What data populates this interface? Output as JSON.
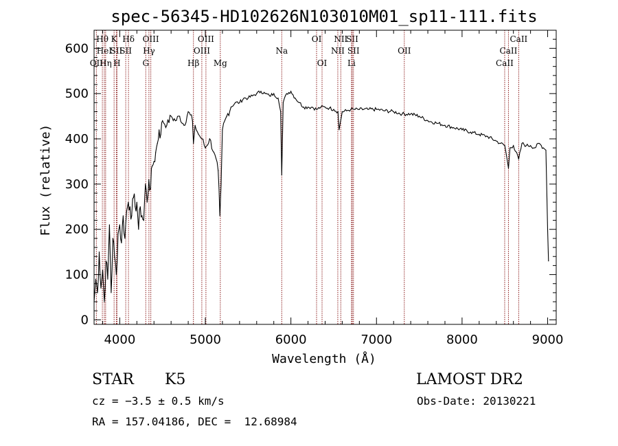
{
  "chart_data": {
    "type": "line",
    "title": "spec-56345-HD102626N103010M01_sp11-111.fits",
    "xlabel": "Wavelength (Å)",
    "ylabel": "Flux (relative)",
    "xlim": [
      3700,
      9100
    ],
    "ylim": [
      -10,
      640
    ],
    "xticks": [
      4000,
      5000,
      6000,
      7000,
      8000,
      9000
    ],
    "yticks": [
      0,
      100,
      200,
      300,
      400,
      500,
      600
    ],
    "grid": false,
    "series": [
      {
        "x": [
          3700,
          3720,
          3740,
          3760,
          3780,
          3800,
          3820,
          3840,
          3860,
          3880,
          3900,
          3920,
          3940,
          3960,
          3980,
          4000,
          4020,
          4040,
          4060,
          4080,
          4100,
          4120,
          4140,
          4160,
          4180,
          4200,
          4220,
          4240,
          4260,
          4280,
          4300,
          4320,
          4340,
          4360,
          4380,
          4400,
          4420,
          4440,
          4460,
          4480,
          4500,
          4550,
          4600,
          4650,
          4700,
          4750,
          4800,
          4850,
          4861,
          4880,
          4920,
          4960,
          5000,
          5050,
          5100,
          5150,
          5170,
          5184,
          5200,
          5250,
          5300,
          5350,
          5400,
          5450,
          5500,
          5550,
          5600,
          5650,
          5700,
          5750,
          5800,
          5850,
          5880,
          5893,
          5910,
          5950,
          6000,
          6050,
          6100,
          6150,
          6200,
          6250,
          6300,
          6350,
          6400,
          6450,
          6500,
          6550,
          6563,
          6600,
          6650,
          6700,
          6750,
          6800,
          6900,
          7000,
          7100,
          7200,
          7300,
          7400,
          7500,
          7600,
          7700,
          7800,
          7900,
          8000,
          8100,
          8200,
          8300,
          8400,
          8450,
          8500,
          8542,
          8560,
          8600,
          8662,
          8700,
          8750,
          8800,
          8850,
          8900,
          8950,
          8980,
          9000,
          9010
        ],
        "values": [
          40,
          90,
          60,
          150,
          70,
          110,
          40,
          130,
          90,
          210,
          60,
          180,
          140,
          100,
          190,
          210,
          170,
          230,
          180,
          240,
          260,
          250,
          230,
          270,
          250,
          260,
          200,
          250,
          230,
          220,
          300,
          260,
          310,
          290,
          340,
          350,
          370,
          390,
          420,
          410,
          440,
          430,
          450,
          440,
          450,
          430,
          460,
          440,
          390,
          430,
          410,
          400,
          380,
          400,
          370,
          330,
          230,
          300,
          420,
          450,
          470,
          480,
          480,
          490,
          490,
          495,
          500,
          505,
          500,
          495,
          500,
          490,
          460,
          320,
          480,
          500,
          505,
          490,
          480,
          470,
          470,
          470,
          465,
          470,
          470,
          468,
          465,
          460,
          420,
          460,
          462,
          465,
          465,
          465,
          465,
          465,
          462,
          460,
          455,
          455,
          450,
          440,
          435,
          430,
          425,
          420,
          415,
          410,
          405,
          395,
          390,
          385,
          335,
          380,
          385,
          355,
          390,
          385,
          385,
          380,
          390,
          380,
          375,
          200,
          130
        ]
      }
    ],
    "spectral_lines": [
      {
        "label": "Hθ",
        "x": 3797,
        "row": 1
      },
      {
        "label": "HeI",
        "x": 3820,
        "row": 2
      },
      {
        "label": "OII",
        "x": 3727,
        "row": 3
      },
      {
        "label": "Hη",
        "x": 3835,
        "row": 3
      },
      {
        "label": "K",
        "x": 3934,
        "row": 1
      },
      {
        "label": "SII",
        "x": 3960,
        "row": 2
      },
      {
        "label": "H",
        "x": 3968,
        "row": 3
      },
      {
        "label": "Hδ",
        "x": 4102,
        "row": 1
      },
      {
        "label": "SII",
        "x": 4070,
        "row": 2
      },
      {
        "label": "OIII",
        "x": 4363,
        "row": 1
      },
      {
        "label": "Hγ",
        "x": 4341,
        "row": 2
      },
      {
        "label": "G",
        "x": 4304,
        "row": 3
      },
      {
        "label": "OIII",
        "x": 5007,
        "row": 1
      },
      {
        "label": "OIII",
        "x": 4959,
        "row": 2
      },
      {
        "label": "Hβ",
        "x": 4861,
        "row": 3
      },
      {
        "label": "Mg",
        "x": 5175,
        "row": 3
      },
      {
        "label": "Na",
        "x": 5893,
        "row": 2
      },
      {
        "label": "OI",
        "x": 6300,
        "row": 1
      },
      {
        "label": "OI",
        "x": 6364,
        "row": 3
      },
      {
        "label": "NII",
        "x": 6583,
        "row": 1
      },
      {
        "label": "SII",
        "x": 6717,
        "row": 1
      },
      {
        "label": "NII",
        "x": 6548,
        "row": 2
      },
      {
        "label": "SII",
        "x": 6731,
        "row": 2
      },
      {
        "label": "Li",
        "x": 6708,
        "row": 3
      },
      {
        "label": "OII",
        "x": 7325,
        "row": 2
      },
      {
        "label": "CaII",
        "x": 8662,
        "row": 1
      },
      {
        "label": "CaII",
        "x": 8542,
        "row": 2
      },
      {
        "label": "CaII",
        "x": 8498,
        "row": 3
      }
    ],
    "colors": {
      "spectrum": "#000000",
      "line_marker": "#8b1a1a"
    }
  },
  "info": {
    "object_class": "STAR",
    "subclass": "K5",
    "survey": "LAMOST DR2",
    "cz": "cz = −3.5 ± 0.5 km/s",
    "obs_date": "Obs-Date: 20130221",
    "radec": "RA = 157.04186, DEC =  12.68984"
  }
}
